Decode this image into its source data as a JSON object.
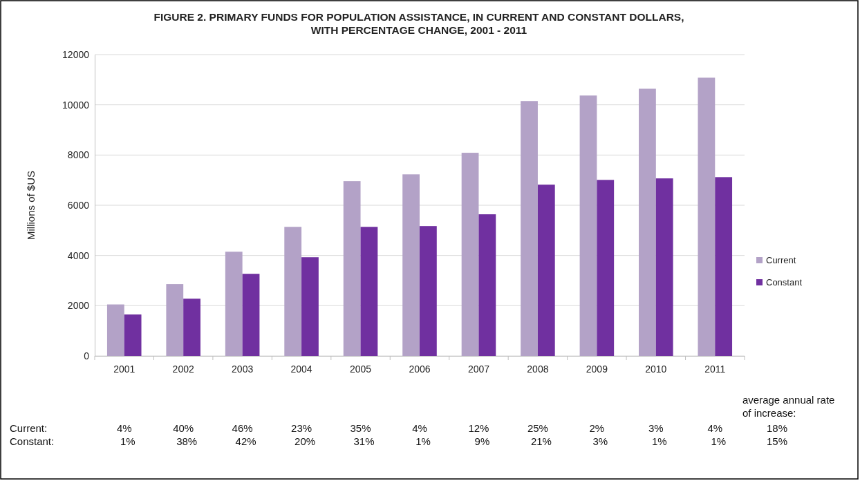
{
  "chart_data": {
    "type": "bar",
    "title": "FIGURE 2. PRIMARY FUNDS FOR POPULATION ASSISTANCE, IN CURRENT AND CONSTANT DOLLARS, WITH PERCENTAGE CHANGE, 2001 - 2011",
    "ylabel": "Millions of $US",
    "categories": [
      "2001",
      "2002",
      "2003",
      "2004",
      "2005",
      "2006",
      "2007",
      "2008",
      "2009",
      "2010",
      "2011"
    ],
    "series": [
      {
        "name": "Current",
        "color": "#b3a2c7",
        "values": [
          2050,
          2860,
          4150,
          5140,
          6960,
          7230,
          8090,
          10150,
          10370,
          10640,
          11080
        ]
      },
      {
        "name": "Constant",
        "color": "#7030a0",
        "values": [
          1650,
          2280,
          3270,
          3930,
          5140,
          5170,
          5640,
          6820,
          7010,
          7070,
          7120
        ]
      }
    ],
    "ylim": [
      0,
      12000
    ],
    "yticks": [
      0,
      2000,
      4000,
      6000,
      8000,
      10000,
      12000
    ],
    "grid": "y",
    "legend": "right",
    "annotations": [
      "average annual rate of increase:",
      "Current:",
      "4%",
      "40%",
      "46%",
      "23%",
      "35%",
      "4%",
      "12%",
      "25%",
      "2%",
      "3%",
      "4%",
      "18%",
      "Constant:",
      "1%",
      "38%",
      "42%",
      "20%",
      "31%",
      "1%",
      "9%",
      "21%",
      "3%",
      "1%",
      "1%",
      "15%"
    ]
  }
}
